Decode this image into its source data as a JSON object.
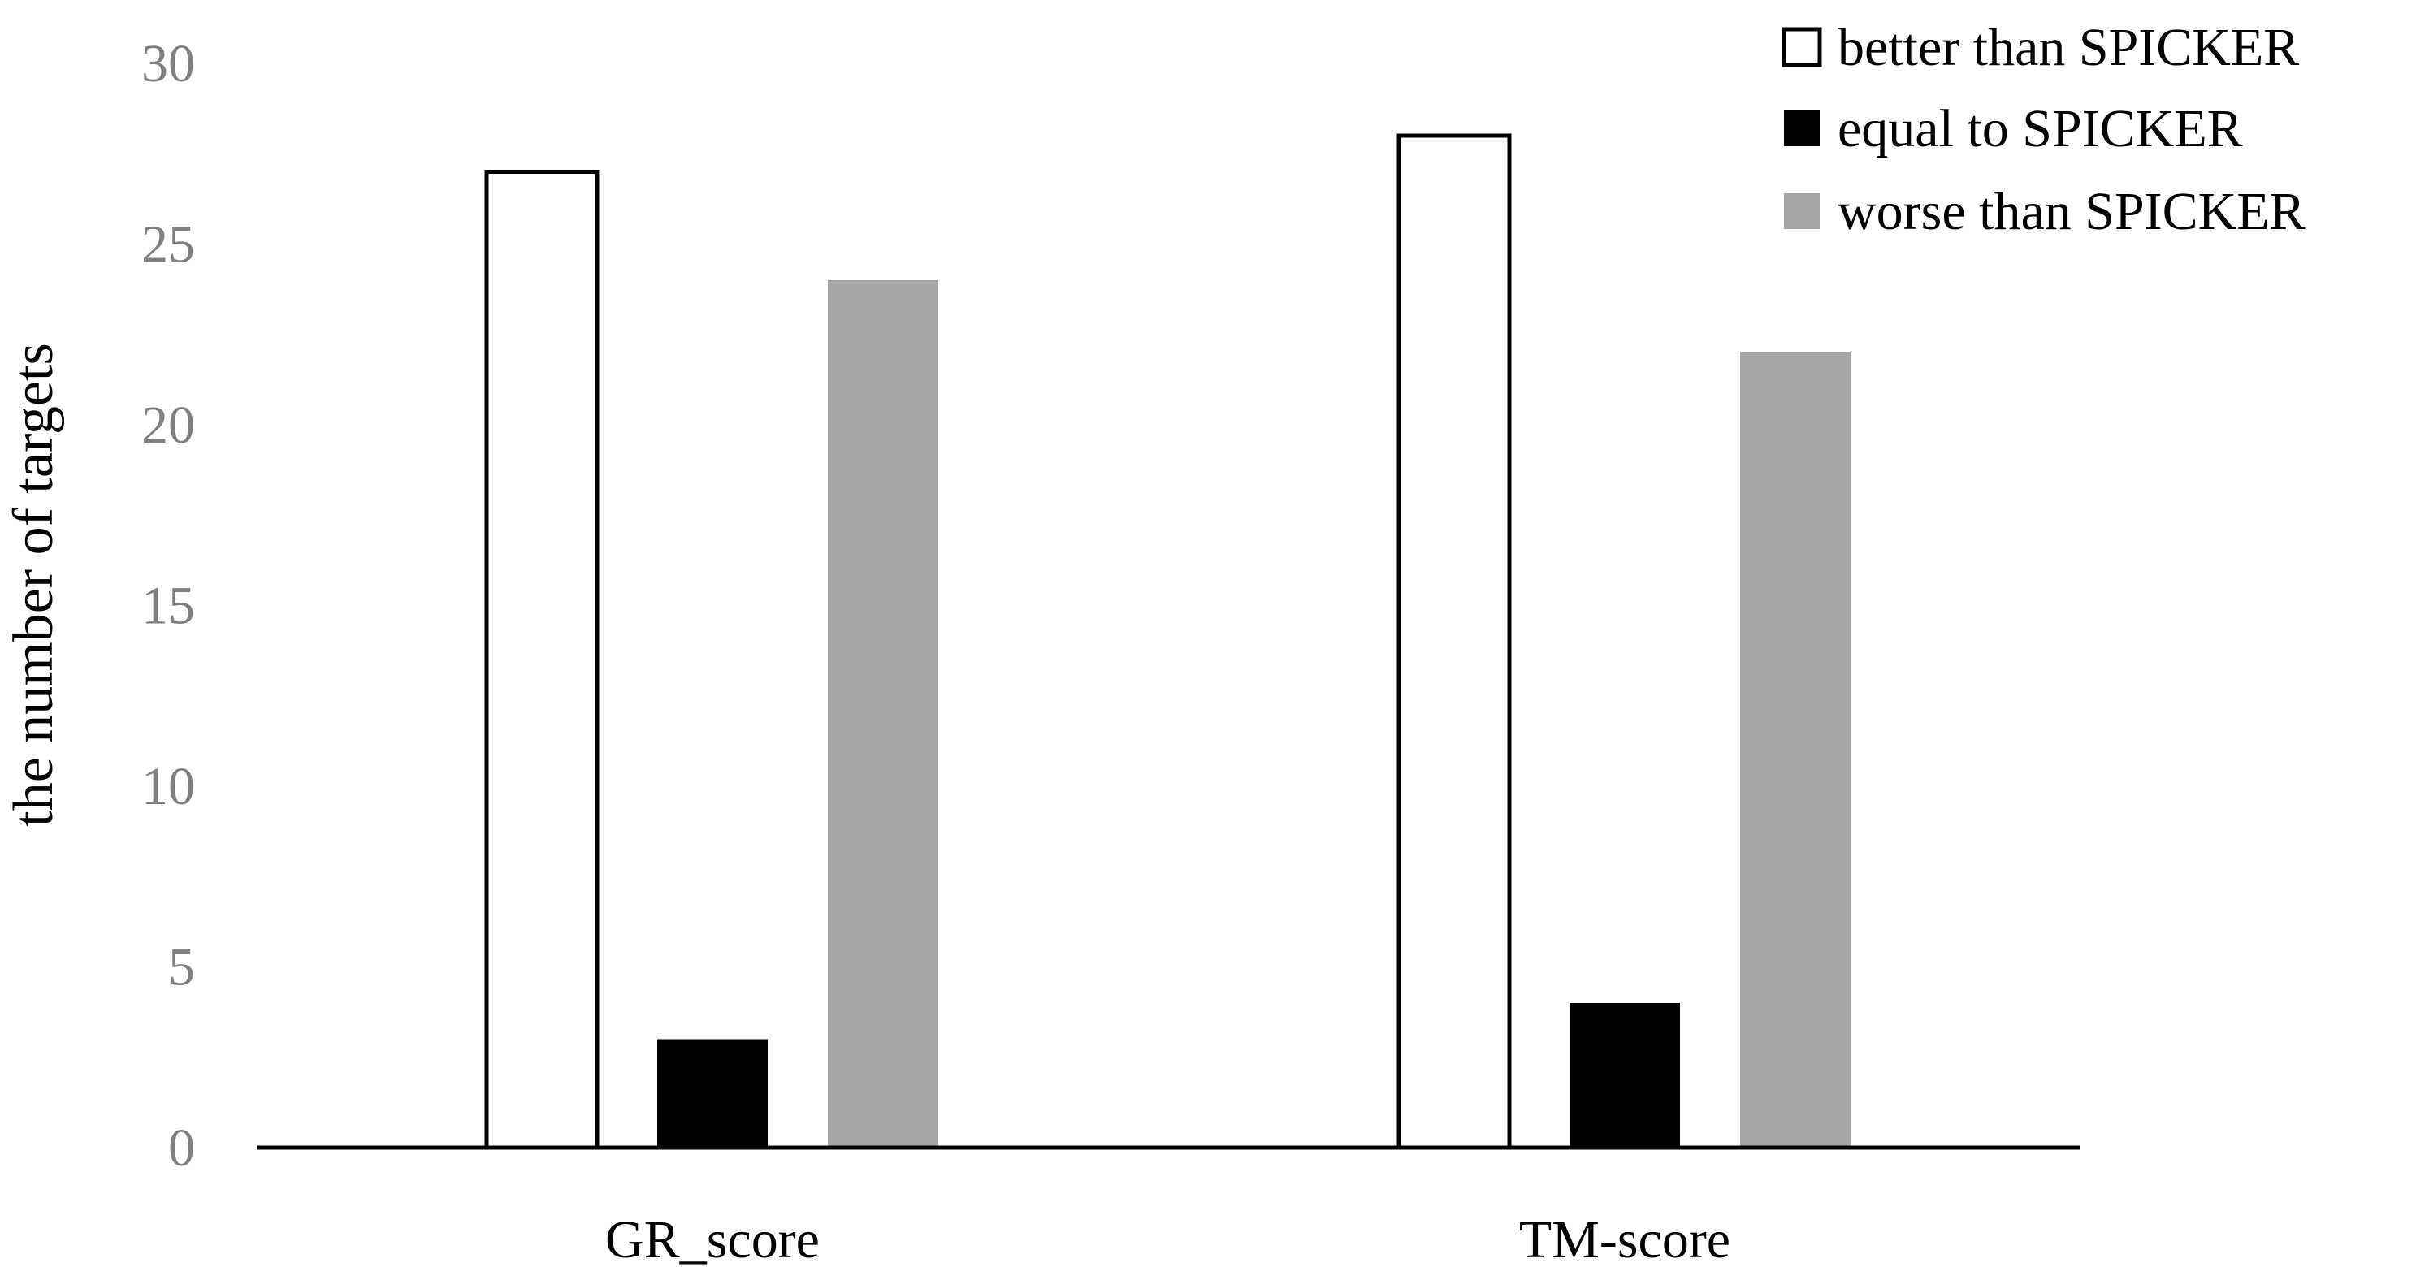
{
  "chart_data": {
    "type": "bar",
    "categories": [
      "GR_score",
      "TM-score"
    ],
    "series": [
      {
        "name": "better than SPICKER",
        "values": [
          27,
          28
        ],
        "color": "#ffffff",
        "stroke": "#000000"
      },
      {
        "name": "equal to SPICKER",
        "values": [
          3,
          4
        ],
        "color": "#000000",
        "stroke": "#000000"
      },
      {
        "name": "worse than SPICKER",
        "values": [
          24,
          22
        ],
        "color": "#a6a6a6",
        "stroke": "#a6a6a6"
      }
    ],
    "title": "",
    "xlabel": "",
    "ylabel": "the number of targets",
    "ylim": [
      0,
      30
    ],
    "yticks": [
      0,
      5,
      10,
      15,
      20,
      25,
      30
    ],
    "grid": false,
    "legend_position": "top-right"
  }
}
